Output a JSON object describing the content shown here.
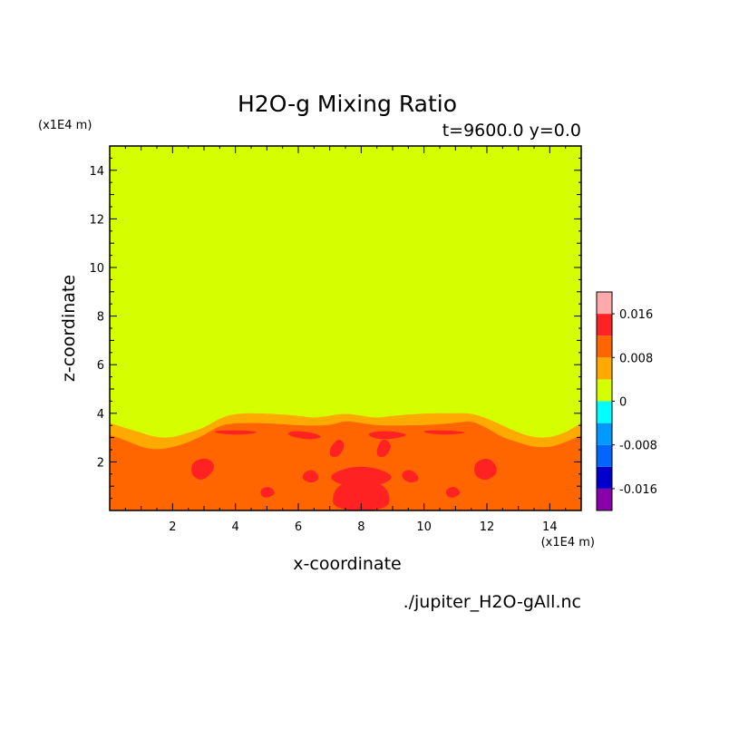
{
  "chart_data": {
    "type": "heatmap",
    "title": "H2O-g Mixing Ratio",
    "subtitle": "t=9600.0 y=0.0",
    "xlabel": "x-coordinate",
    "ylabel": "z-coordinate",
    "x_unit": "(x1E4 m)",
    "y_unit": "(x1E4 m)",
    "xlim": [
      0,
      15
    ],
    "ylim": [
      0,
      15
    ],
    "x_ticks": [
      2,
      4,
      6,
      8,
      10,
      12,
      14
    ],
    "y_ticks": [
      2,
      4,
      6,
      8,
      10,
      12,
      14
    ],
    "grid": false,
    "legend_position": "right",
    "source_file": "./jupiter_H2O-gAll.nc",
    "colorbar": {
      "min": -0.02,
      "max": 0.02,
      "levels": [
        {
          "from": -0.02,
          "to": -0.016,
          "color": "#8800aa"
        },
        {
          "from": -0.016,
          "to": -0.012,
          "color": "#0000cc"
        },
        {
          "from": -0.012,
          "to": -0.008,
          "color": "#0066ff"
        },
        {
          "from": -0.008,
          "to": -0.004,
          "color": "#0099ff"
        },
        {
          "from": -0.004,
          "to": 0.0,
          "color": "#00ffff"
        },
        {
          "from": 0.0,
          "to": 0.004,
          "color": "#d5ff00"
        },
        {
          "from": 0.004,
          "to": 0.008,
          "color": "#ffaa00"
        },
        {
          "from": 0.008,
          "to": 0.012,
          "color": "#ff6600"
        },
        {
          "from": 0.012,
          "to": 0.016,
          "color": "#ff2222"
        },
        {
          "from": 0.016,
          "to": 0.02,
          "color": "#ffaaaa"
        }
      ],
      "tick_labels": [
        {
          "value": 0.016,
          "label": "0.016"
        },
        {
          "value": 0.008,
          "label": "0.008"
        },
        {
          "value": 0.0,
          "label": "0"
        },
        {
          "value": -0.008,
          "label": "-0.008"
        },
        {
          "value": -0.016,
          "label": "-0.016"
        }
      ]
    },
    "field": {
      "background_color": "#d5ff00",
      "lower_layer_color": "#ff6600",
      "transition_color": "#ffaa00",
      "peak_color": "#ff2222",
      "lower_layer_top": [
        [
          0,
          3.1
        ],
        [
          0.5,
          2.9
        ],
        [
          1,
          2.6
        ],
        [
          1.5,
          2.5
        ],
        [
          2,
          2.6
        ],
        [
          2.5,
          2.8
        ],
        [
          3,
          3.1
        ],
        [
          3.5,
          3.5
        ],
        [
          4,
          3.6
        ],
        [
          5,
          3.6
        ],
        [
          6,
          3.5
        ],
        [
          6.5,
          3.5
        ],
        [
          7,
          3.5
        ],
        [
          7.5,
          3.7
        ],
        [
          8,
          3.6
        ],
        [
          8.5,
          3.5
        ],
        [
          9,
          3.5
        ],
        [
          10,
          3.5
        ],
        [
          11,
          3.6
        ],
        [
          11.5,
          3.7
        ],
        [
          12,
          3.4
        ],
        [
          12.5,
          3.0
        ],
        [
          13,
          2.8
        ],
        [
          13.5,
          2.6
        ],
        [
          14,
          2.6
        ],
        [
          14.5,
          2.8
        ],
        [
          15,
          3.1
        ]
      ],
      "transition_top": [
        [
          0,
          3.6
        ],
        [
          0.5,
          3.4
        ],
        [
          1,
          3.2
        ],
        [
          1.5,
          3.0
        ],
        [
          2,
          3.0
        ],
        [
          2.5,
          3.2
        ],
        [
          3,
          3.4
        ],
        [
          3.5,
          3.8
        ],
        [
          4,
          4.0
        ],
        [
          5,
          4.0
        ],
        [
          6,
          3.9
        ],
        [
          6.5,
          3.8
        ],
        [
          7,
          3.9
        ],
        [
          7.5,
          4.0
        ],
        [
          8,
          3.9
        ],
        [
          8.5,
          3.8
        ],
        [
          9,
          3.9
        ],
        [
          10,
          4.0
        ],
        [
          11,
          4.0
        ],
        [
          11.5,
          4.0
        ],
        [
          12,
          3.8
        ],
        [
          12.5,
          3.5
        ],
        [
          13,
          3.2
        ],
        [
          13.5,
          3.0
        ],
        [
          14,
          3.0
        ],
        [
          14.5,
          3.2
        ],
        [
          15,
          3.6
        ]
      ],
      "peak_cells": [
        [
          [
            5.8,
            3.3
          ],
          [
            6.5,
            3.2
          ],
          [
            6.8,
            3.0
          ],
          [
            6.3,
            2.9
          ],
          [
            5.6,
            3.1
          ]
        ],
        [
          [
            8.2,
            3.2
          ],
          [
            8.9,
            3.3
          ],
          [
            9.6,
            3.1
          ],
          [
            8.8,
            2.9
          ],
          [
            8.3,
            3.0
          ]
        ],
        [
          [
            3.4,
            3.3
          ],
          [
            4.4,
            3.3
          ],
          [
            4.8,
            3.2
          ],
          [
            4.0,
            3.1
          ],
          [
            3.3,
            3.2
          ]
        ],
        [
          [
            10.0,
            3.3
          ],
          [
            10.8,
            3.3
          ],
          [
            11.5,
            3.2
          ],
          [
            10.6,
            3.1
          ],
          [
            10.0,
            3.2
          ]
        ],
        [
          [
            2.6,
            2.0
          ],
          [
            3.1,
            2.2
          ],
          [
            3.4,
            1.8
          ],
          [
            3.0,
            1.2
          ],
          [
            2.6,
            1.4
          ]
        ],
        [
          [
            11.6,
            2.0
          ],
          [
            12.1,
            2.2
          ],
          [
            12.4,
            1.6
          ],
          [
            12.0,
            1.2
          ],
          [
            11.6,
            1.4
          ]
        ],
        [
          [
            7.0,
            2.6
          ],
          [
            7.3,
            3.0
          ],
          [
            7.5,
            2.7
          ],
          [
            7.3,
            2.2
          ],
          [
            7.0,
            2.2
          ]
        ],
        [
          [
            8.5,
            2.6
          ],
          [
            8.7,
            3.0
          ],
          [
            9.0,
            2.7
          ],
          [
            8.8,
            2.2
          ],
          [
            8.5,
            2.2
          ]
        ],
        [
          [
            6.9,
            1.4
          ],
          [
            7.6,
            1.8
          ],
          [
            8.4,
            1.8
          ],
          [
            9.1,
            1.4
          ],
          [
            8.6,
            1.0
          ],
          [
            7.4,
            1.0
          ]
        ],
        [
          [
            7.1,
            0.0
          ],
          [
            7.1,
            0.8
          ],
          [
            7.5,
            1.2
          ],
          [
            8.0,
            1.1
          ],
          [
            8.5,
            1.2
          ],
          [
            8.9,
            0.8
          ],
          [
            8.9,
            0.0
          ]
        ],
        [
          [
            6.2,
            1.6
          ],
          [
            6.5,
            1.7
          ],
          [
            6.7,
            1.3
          ],
          [
            6.4,
            1.1
          ],
          [
            6.1,
            1.3
          ]
        ],
        [
          [
            9.3,
            1.6
          ],
          [
            9.6,
            1.7
          ],
          [
            9.9,
            1.3
          ],
          [
            9.6,
            1.1
          ],
          [
            9.3,
            1.3
          ]
        ],
        [
          [
            4.8,
            0.9
          ],
          [
            5.1,
            1.0
          ],
          [
            5.3,
            0.7
          ],
          [
            5.0,
            0.5
          ],
          [
            4.8,
            0.6
          ]
        ],
        [
          [
            10.7,
            0.9
          ],
          [
            11.0,
            1.0
          ],
          [
            11.2,
            0.7
          ],
          [
            10.9,
            0.5
          ],
          [
            10.7,
            0.6
          ]
        ]
      ]
    }
  }
}
